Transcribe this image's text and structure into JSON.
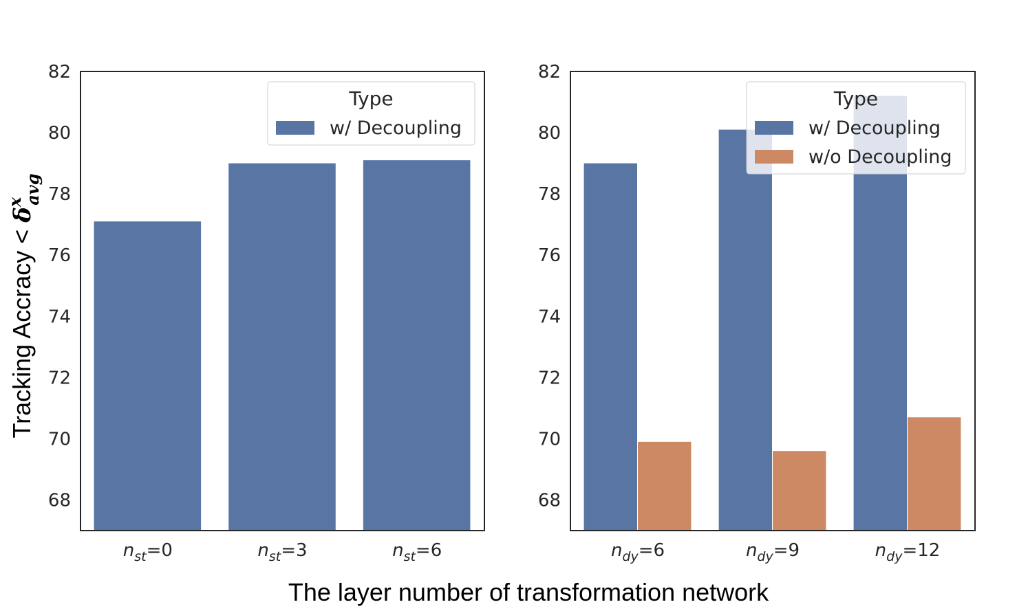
{
  "chart_data": [
    {
      "type": "bar",
      "categories": [
        {
          "var": "n",
          "sub": "st",
          "eq": "=0"
        },
        {
          "var": "n",
          "sub": "st",
          "eq": "=3"
        },
        {
          "var": "n",
          "sub": "st",
          "eq": "=6"
        }
      ],
      "series": [
        {
          "name": "w/ Decoupling",
          "values": [
            77.1,
            79.0,
            79.1
          ]
        }
      ],
      "ylim": [
        67,
        82
      ],
      "yticks": [
        68,
        70,
        72,
        74,
        76,
        78,
        80,
        82
      ],
      "legend": {
        "title": "Type",
        "position": "top-right"
      }
    },
    {
      "type": "bar",
      "categories": [
        {
          "var": "n",
          "sub": "dy",
          "eq": "=6"
        },
        {
          "var": "n",
          "sub": "dy",
          "eq": "=9"
        },
        {
          "var": "n",
          "sub": "dy",
          "eq": "=12"
        }
      ],
      "series": [
        {
          "name": "w/ Decoupling",
          "values": [
            79.0,
            80.1,
            81.2
          ]
        },
        {
          "name": "w/o Decoupling",
          "values": [
            69.9,
            69.6,
            70.7
          ]
        }
      ],
      "ylim": [
        67,
        82
      ],
      "yticks": [
        68,
        70,
        72,
        74,
        76,
        78,
        80,
        82
      ],
      "legend": {
        "title": "Type",
        "position": "top-right"
      }
    }
  ],
  "ylabel": {
    "text": "Tracking Accracy < ",
    "symbol": "δ",
    "sup": "x",
    "sub": "avg"
  },
  "xlabel": "The layer number of transformation network",
  "colors": {
    "w/ Decoupling": "#5975a4",
    "w/o Decoupling": "#cc8963",
    "axis": "#262626"
  }
}
